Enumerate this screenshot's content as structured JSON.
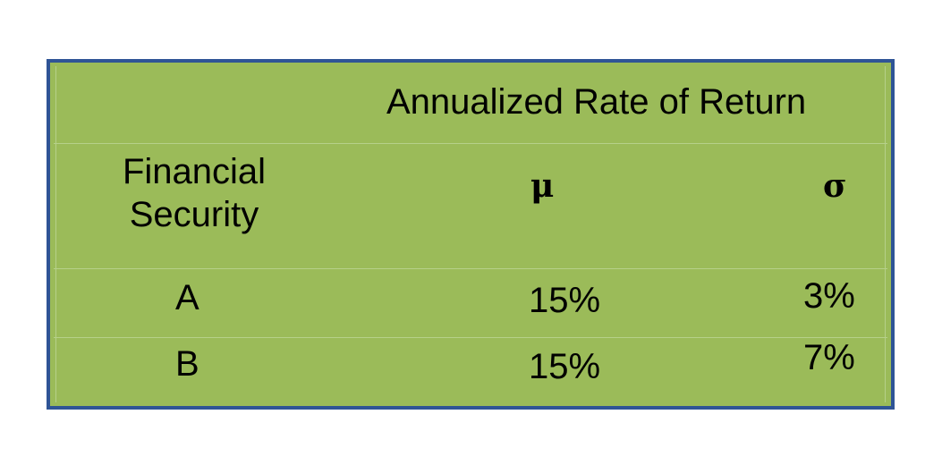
{
  "table": {
    "header_title": "Annualized Rate of Return",
    "columns": {
      "security": "Financial Security",
      "mu": "μ",
      "sigma": "σ"
    },
    "rows": [
      {
        "security": "A",
        "mu": "15%",
        "sigma": "3%"
      },
      {
        "security": "B",
        "mu": "15%",
        "sigma": "7%"
      }
    ]
  },
  "colors": {
    "border": "#2f5496",
    "fill": "#9bbb59"
  }
}
